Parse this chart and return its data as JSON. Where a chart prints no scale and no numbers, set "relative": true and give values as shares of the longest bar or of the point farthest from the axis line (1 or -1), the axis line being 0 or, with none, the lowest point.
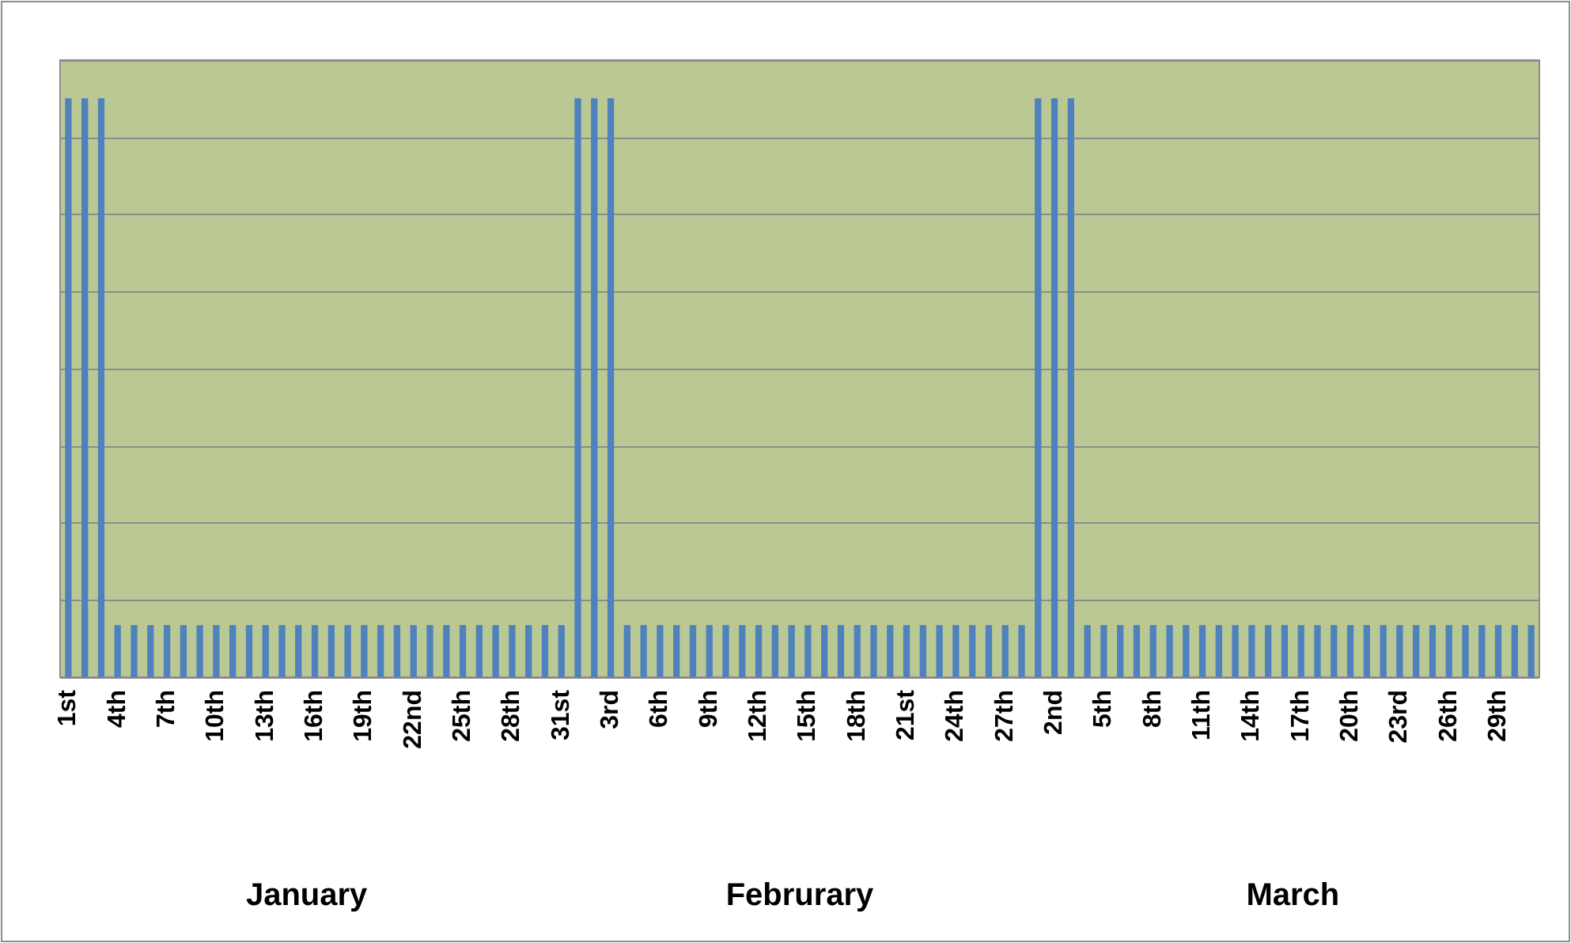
{
  "chart_data": {
    "type": "bar",
    "relative": true,
    "color": "#4f81bd",
    "grid": "y",
    "categories": [
      "1st",
      null,
      null,
      "4th",
      null,
      null,
      "7th",
      null,
      null,
      "10th",
      null,
      null,
      "13th",
      null,
      null,
      "16th",
      null,
      null,
      "19th",
      null,
      null,
      "22nd",
      null,
      null,
      "25th",
      null,
      null,
      "28th",
      null,
      null,
      "31st",
      null,
      null,
      "3rd",
      null,
      null,
      "6th",
      null,
      null,
      "9th",
      null,
      null,
      "12th",
      null,
      null,
      "15th",
      null,
      null,
      "18th",
      null,
      null,
      "21st",
      null,
      null,
      "24th",
      null,
      null,
      "27th",
      null,
      null,
      "2nd",
      null,
      null,
      "5th",
      null,
      null,
      "8th",
      null,
      null,
      "11th",
      null,
      null,
      "14th",
      null,
      null,
      "17th",
      null,
      null,
      "20th",
      null,
      null,
      "23rd",
      null,
      null,
      "26th",
      null,
      null,
      "29th",
      null,
      null
    ],
    "values": [
      1,
      1,
      1,
      0.09,
      0.09,
      0.09,
      0.09,
      0.09,
      0.09,
      0.09,
      0.09,
      0.09,
      0.09,
      0.09,
      0.09,
      0.09,
      0.09,
      0.09,
      0.09,
      0.09,
      0.09,
      0.09,
      0.09,
      0.09,
      0.09,
      0.09,
      0.09,
      0.09,
      0.09,
      0.09,
      0.09,
      1,
      1,
      1,
      0.09,
      0.09,
      0.09,
      0.09,
      0.09,
      0.09,
      0.09,
      0.09,
      0.09,
      0.09,
      0.09,
      0.09,
      0.09,
      0.09,
      0.09,
      0.09,
      0.09,
      0.09,
      0.09,
      0.09,
      0.09,
      0.09,
      0.09,
      0.09,
      0.09,
      1,
      1,
      1,
      0.09,
      0.09,
      0.09,
      0.09,
      0.09,
      0.09,
      0.09,
      0.09,
      0.09,
      0.09,
      0.09,
      0.09,
      0.09,
      0.09,
      0.09,
      0.09,
      0.09,
      0.09,
      0.09,
      0.09,
      0.09,
      0.09,
      0.09,
      0.09,
      0.09,
      0.09,
      0.09,
      0.09
    ],
    "annotations": [
      "January",
      "Februrary",
      "March"
    ]
  }
}
